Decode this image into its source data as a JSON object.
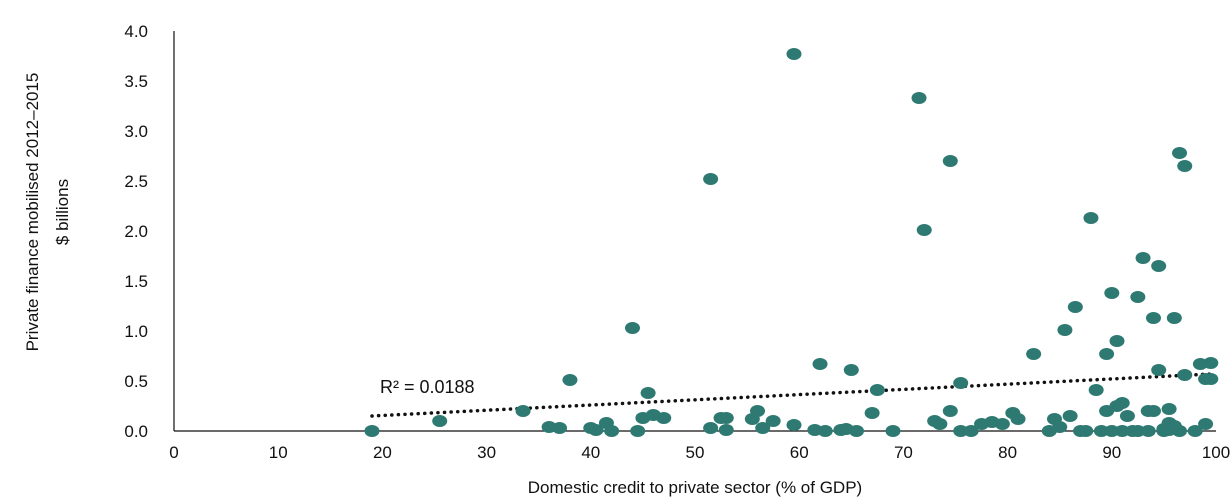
{
  "chart_data": {
    "type": "scatter",
    "xlabel": "Domestic credit to private sector (% of GDP)",
    "ylabel": [
      "Private finance mobilised 2012–2015",
      "$ billions"
    ],
    "xlim": [
      0,
      100
    ],
    "ylim": [
      0,
      4.0
    ],
    "x_ticks": [
      0,
      10,
      20,
      30,
      40,
      50,
      60,
      70,
      80,
      90,
      100
    ],
    "y_ticks": [
      0.0,
      0.5,
      1.0,
      1.5,
      2.0,
      2.5,
      3.0,
      3.5,
      4.0
    ],
    "x_tick_labels": [
      "0",
      "10",
      "20",
      "30",
      "40",
      "50",
      "60",
      "70",
      "80",
      "90",
      "100"
    ],
    "y_tick_labels": [
      "0.0",
      "0.5",
      "1.0",
      "1.5",
      "2.0",
      "2.5",
      "3.0",
      "3.5",
      "4.0"
    ],
    "grid": false,
    "colors": {
      "points": "#2e7a72",
      "trend": "#111111"
    },
    "trendline": {
      "style": "dotted",
      "x": [
        19.0,
        99.5
      ],
      "y": [
        0.15,
        0.57
      ],
      "label": "R² = 0.0188"
    },
    "points": [
      [
        19.0,
        0.0
      ],
      [
        25.5,
        0.1
      ],
      [
        33.5,
        0.2
      ],
      [
        36.0,
        0.04
      ],
      [
        37.0,
        0.03
      ],
      [
        38.0,
        0.51
      ],
      [
        40.0,
        0.03
      ],
      [
        40.5,
        0.01
      ],
      [
        41.5,
        0.08
      ],
      [
        42.0,
        0.0
      ],
      [
        44.0,
        1.03
      ],
      [
        44.5,
        0.0
      ],
      [
        45.0,
        0.13
      ],
      [
        45.5,
        0.38
      ],
      [
        46.0,
        0.16
      ],
      [
        47.0,
        0.13
      ],
      [
        51.5,
        2.52
      ],
      [
        51.5,
        0.03
      ],
      [
        52.5,
        0.13
      ],
      [
        53.0,
        0.13
      ],
      [
        53.0,
        0.01
      ],
      [
        55.5,
        0.12
      ],
      [
        56.0,
        0.2
      ],
      [
        56.5,
        0.03
      ],
      [
        57.5,
        0.1
      ],
      [
        59.5,
        3.77
      ],
      [
        59.5,
        0.06
      ],
      [
        61.5,
        0.01
      ],
      [
        62.0,
        0.67
      ],
      [
        62.5,
        0.0
      ],
      [
        64.0,
        0.01
      ],
      [
        64.5,
        0.02
      ],
      [
        65.0,
        0.61
      ],
      [
        65.5,
        0.0
      ],
      [
        67.0,
        0.18
      ],
      [
        67.5,
        0.41
      ],
      [
        69.0,
        0.0
      ],
      [
        71.5,
        3.33
      ],
      [
        72.0,
        2.01
      ],
      [
        73.0,
        0.1
      ],
      [
        73.5,
        0.07
      ],
      [
        74.5,
        2.7
      ],
      [
        74.5,
        0.2
      ],
      [
        75.5,
        0.48
      ],
      [
        75.5,
        0.0
      ],
      [
        76.5,
        0.0
      ],
      [
        77.5,
        0.07
      ],
      [
        78.5,
        0.09
      ],
      [
        79.5,
        0.07
      ],
      [
        80.5,
        0.18
      ],
      [
        81.0,
        0.12
      ],
      [
        82.5,
        0.77
      ],
      [
        84.0,
        0.0
      ],
      [
        84.5,
        0.12
      ],
      [
        85.0,
        0.04
      ],
      [
        85.5,
        1.01
      ],
      [
        86.0,
        0.15
      ],
      [
        86.5,
        1.24
      ],
      [
        87.0,
        0.0
      ],
      [
        87.5,
        0.0
      ],
      [
        88.0,
        2.13
      ],
      [
        88.5,
        0.41
      ],
      [
        89.0,
        0.0
      ],
      [
        89.5,
        0.2
      ],
      [
        89.5,
        0.77
      ],
      [
        90.0,
        1.38
      ],
      [
        90.0,
        0.0
      ],
      [
        90.5,
        0.25
      ],
      [
        90.5,
        0.9
      ],
      [
        91.0,
        0.28
      ],
      [
        91.0,
        0.0
      ],
      [
        91.5,
        0.15
      ],
      [
        92.0,
        0.0
      ],
      [
        92.5,
        1.34
      ],
      [
        92.5,
        0.0
      ],
      [
        93.0,
        1.73
      ],
      [
        93.5,
        0.2
      ],
      [
        93.5,
        0.0
      ],
      [
        94.0,
        1.13
      ],
      [
        94.0,
        0.2
      ],
      [
        94.5,
        1.65
      ],
      [
        94.5,
        0.61
      ],
      [
        95.0,
        0.0
      ],
      [
        95.0,
        0.02
      ],
      [
        95.5,
        0.22
      ],
      [
        95.5,
        0.08
      ],
      [
        95.5,
        0.01
      ],
      [
        96.0,
        1.13
      ],
      [
        96.0,
        0.05
      ],
      [
        96.5,
        0.0
      ],
      [
        96.5,
        2.78
      ],
      [
        97.0,
        2.65
      ],
      [
        97.0,
        0.56
      ],
      [
        98.0,
        0.0
      ],
      [
        98.5,
        0.67
      ],
      [
        99.0,
        0.07
      ],
      [
        99.0,
        0.52
      ],
      [
        99.5,
        0.68
      ],
      [
        99.5,
        0.52
      ]
    ]
  }
}
